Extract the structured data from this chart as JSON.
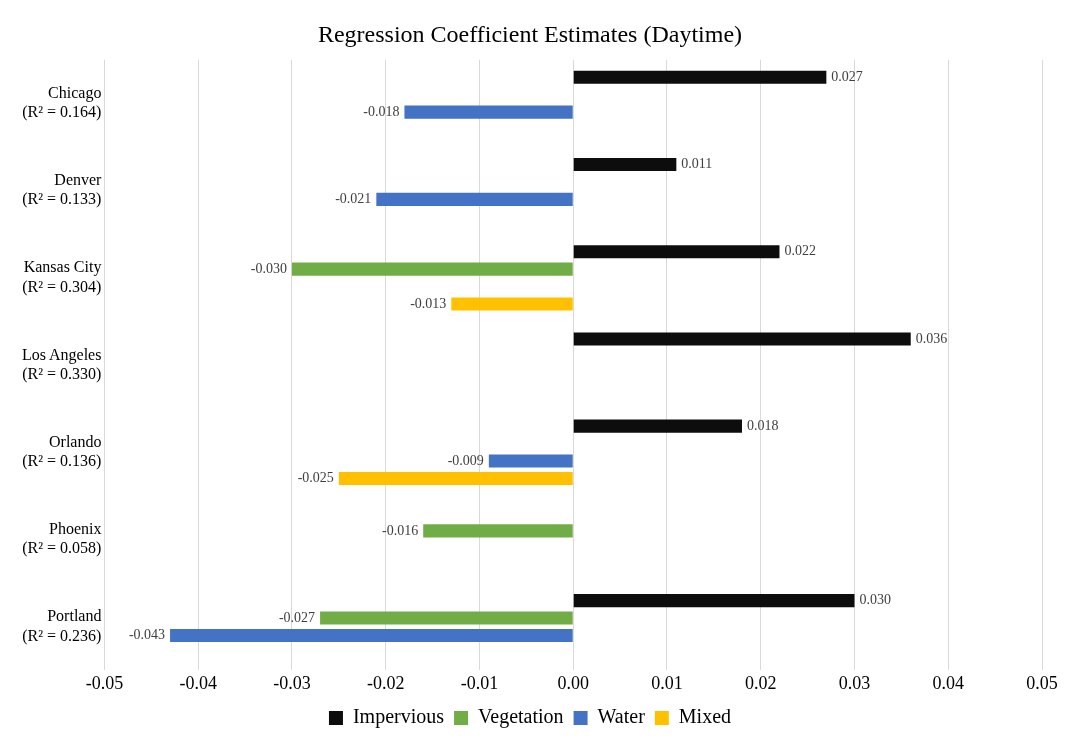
{
  "chart_data": {
    "type": "bar",
    "orientation": "horizontal",
    "title": "Regression Coefficient Estimates (Daytime)",
    "categories": [
      "Chicago\n(R² = 0.164)",
      "Denver\n(R² = 0.133)",
      "Kansas City\n(R² = 0.304)",
      "Los Angeles\n(R² = 0.330)",
      "Orlando\n(R² = 0.136)",
      "Phoenix\n(R² = 0.058)",
      "Portland\n(R² = 0.236)"
    ],
    "series": [
      {
        "name": "Impervious",
        "color": "#0d0d0d",
        "values": [
          0.027,
          0.011,
          0.022,
          0.036,
          0.018,
          null,
          0.03
        ],
        "value_labels": [
          "0.027",
          "0.011",
          "0.022",
          "0.036",
          "0.018",
          null,
          "0.030"
        ]
      },
      {
        "name": "Vegetation",
        "color": "#70ad47",
        "values": [
          null,
          null,
          -0.03,
          null,
          null,
          -0.016,
          -0.027
        ],
        "value_labels": [
          null,
          null,
          "-0.030",
          null,
          null,
          "-0.016",
          "-0.027"
        ]
      },
      {
        "name": "Water",
        "color": "#4472c4",
        "values": [
          -0.018,
          -0.021,
          null,
          null,
          -0.009,
          null,
          -0.043
        ],
        "value_labels": [
          "-0.018",
          "-0.021",
          null,
          null,
          "-0.009",
          null,
          "-0.043"
        ]
      },
      {
        "name": "Mixed",
        "color": "#ffc000",
        "values": [
          null,
          null,
          -0.013,
          null,
          -0.025,
          null,
          null
        ],
        "value_labels": [
          null,
          null,
          "-0.013",
          null,
          "-0.025",
          null,
          null
        ]
      }
    ],
    "xlim": [
      -0.05,
      0.05
    ],
    "xticks": [
      {
        "value": -0.05,
        "label": "-0.05"
      },
      {
        "value": -0.04,
        "label": "-0.04"
      },
      {
        "value": -0.03,
        "label": "-0.03"
      },
      {
        "value": -0.02,
        "label": "-0.02"
      },
      {
        "value": -0.01,
        "label": "-0.01"
      },
      {
        "value": 0,
        "label": "0.00"
      },
      {
        "value": 0.01,
        "label": "0.01"
      },
      {
        "value": 0.02,
        "label": "0.02"
      },
      {
        "value": 0.03,
        "label": "0.03"
      },
      {
        "value": 0.04,
        "label": "0.04"
      },
      {
        "value": 0.05,
        "label": "0.05"
      }
    ],
    "grid": "x",
    "legend": "bottom"
  }
}
